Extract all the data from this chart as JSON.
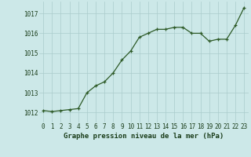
{
  "x": [
    0,
    1,
    2,
    3,
    4,
    5,
    6,
    7,
    8,
    9,
    10,
    11,
    12,
    13,
    14,
    15,
    16,
    17,
    18,
    19,
    20,
    21,
    22,
    23
  ],
  "y": [
    1012.1,
    1012.05,
    1012.1,
    1012.15,
    1012.2,
    1013.0,
    1013.35,
    1013.55,
    1014.0,
    1014.65,
    1015.1,
    1015.8,
    1016.0,
    1016.2,
    1016.2,
    1016.3,
    1016.3,
    1016.0,
    1016.0,
    1015.6,
    1015.7,
    1015.7,
    1016.4,
    1017.3
  ],
  "line_color": "#2d5a27",
  "marker_color": "#2d5a27",
  "bg_color": "#cce8e8",
  "grid_color": "#aacccc",
  "xlabel": "Graphe pression niveau de la mer (hPa)",
  "xlabel_color": "#1a3d1a",
  "tick_color": "#1a3d1a",
  "ylim": [
    1011.5,
    1017.6
  ],
  "yticks": [
    1012,
    1013,
    1014,
    1015,
    1016,
    1017
  ],
  "xticks": [
    0,
    1,
    2,
    3,
    4,
    5,
    6,
    7,
    8,
    9,
    10,
    11,
    12,
    13,
    14,
    15,
    16,
    17,
    18,
    19,
    20,
    21,
    22,
    23
  ],
  "xlim": [
    -0.5,
    23.5
  ],
  "xlabel_fontsize": 6.5,
  "tick_fontsize": 5.5
}
